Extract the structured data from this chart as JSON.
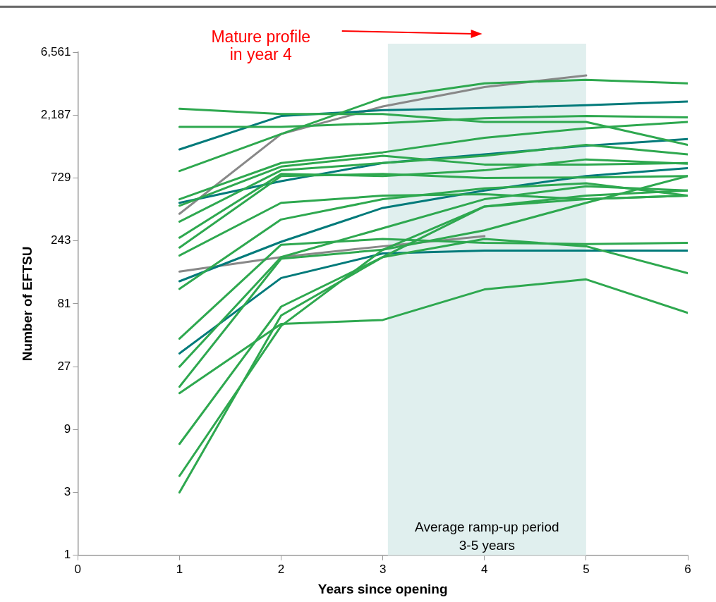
{
  "chart_data": {
    "type": "line",
    "xlabel": "Years since opening",
    "ylabel": "Number of EFTSU",
    "x": [
      1,
      2,
      3,
      4,
      5,
      6
    ],
    "xlim": [
      0,
      6
    ],
    "xticks": [
      0,
      1,
      2,
      3,
      4,
      5,
      6
    ],
    "ylim": [
      1,
      6561
    ],
    "yticks": [
      1,
      3,
      9,
      27,
      81,
      243,
      729,
      {
        "value": 2187,
        "label": "2,187"
      },
      {
        "value": 6561,
        "label": "6,561"
      }
    ],
    "log": "y",
    "grid": false,
    "legend": false,
    "marker": "none",
    "line_style": "solid",
    "bands": [
      {
        "axis": "x",
        "from": 3.05,
        "to": 5,
        "label": "Average ramp-up period\n3-5 years",
        "color": "#e0efee"
      }
    ],
    "annotations": [
      "Mature profile\nin year 4"
    ],
    "series": [
      {
        "color": "#2ea84f",
        "values": [
          2440,
          2230,
          2230,
          1940,
          1940,
          1300
        ]
      },
      {
        "color": "#2ea84f",
        "values": [
          1780,
          1780,
          1900,
          2070,
          2150,
          2100
        ]
      },
      {
        "color": "#2ea84f",
        "values": [
          822,
          1570,
          2950,
          3800,
          4050,
          3800
        ]
      },
      {
        "color": "#2ea84f",
        "values": [
          503,
          946,
          1140,
          1470,
          1735,
          1940
        ]
      },
      {
        "color": "#2ea84f",
        "values": [
          449,
          889,
          1073,
          922,
          922,
          946
        ]
      },
      {
        "color": "#2ea84f",
        "values": [
          340,
          833,
          946,
          1073,
          1300,
          1100
        ]
      },
      {
        "color": "#2ea84f",
        "values": [
          257,
          782,
          754,
          833,
          1008,
          934
        ]
      },
      {
        "color": "#2ea84f",
        "values": [
          216,
          754,
          782,
          729,
          735,
          754
        ]
      },
      {
        "color": "#2ea84f",
        "values": [
          188,
          472,
          535,
          549,
          503,
          535
        ]
      },
      {
        "color": "#2ea84f",
        "values": [
          105,
          353,
          503,
          607,
          664,
          535
        ]
      },
      {
        "color": "#2ea84f",
        "values": [
          44,
          227,
          251,
          235,
          230,
          235
        ]
      },
      {
        "color": "#2ea84f",
        "values": [
          27,
          183,
          303,
          503,
          631,
          585
        ]
      },
      {
        "color": "#2ea84f",
        "values": [
          19,
          178,
          208,
          443,
          503,
          535
        ]
      },
      {
        "color": "#2ea84f",
        "values": [
          17,
          57,
          61,
          104,
          124,
          69
        ]
      },
      {
        "color": "#2ea84f",
        "values": [
          7,
          77,
          183,
          251,
          221,
          138
        ]
      },
      {
        "color": "#2ea84f",
        "values": [
          4,
          55,
          208,
          292,
          472,
          754
        ]
      },
      {
        "color": "#2ea84f",
        "values": [
          3,
          66,
          183,
          443,
          535,
          585
        ]
      },
      {
        "color": "#007a7a",
        "values": [
          1200,
          2150,
          2380,
          2470,
          2600,
          2770
        ]
      },
      {
        "color": "#007a7a",
        "values": [
          472,
          690,
          946,
          1100,
          1280,
          1440
        ]
      },
      {
        "color": "#007a7a",
        "values": [
          120,
          239,
          432,
          585,
          754,
          866
        ]
      },
      {
        "color": "#007a7a",
        "values": [
          34,
          127,
          195,
          205,
          205,
          205
        ]
      },
      {
        "color": "#888888",
        "values": [
          390,
          1570,
          2540,
          3570,
          4370,
          null
        ]
      },
      {
        "color": "#888888",
        "values": [
          142,
          183,
          221,
          264,
          null,
          null
        ]
      }
    ]
  }
}
